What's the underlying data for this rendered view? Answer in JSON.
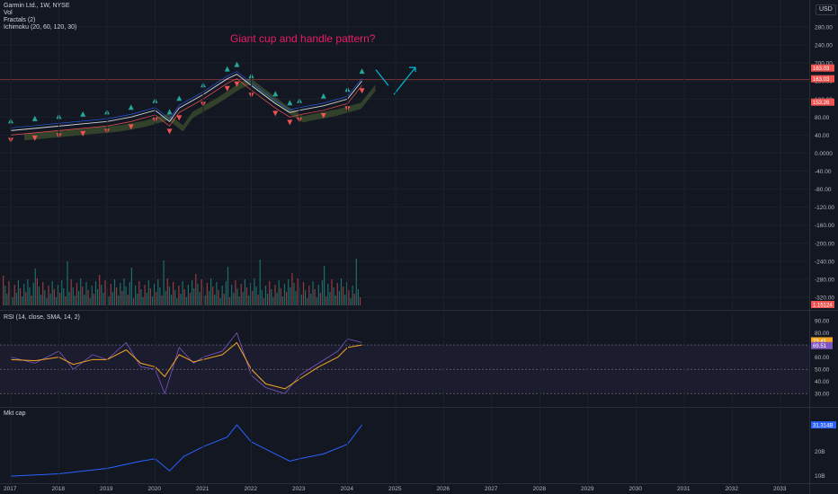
{
  "header": {
    "symbol": "Garmin Ltd., 1W, NYSE",
    "indicators": [
      "Vol",
      "Fractals (2)",
      "Ichimoku (20, 60, 120, 30)"
    ],
    "currency": "USD"
  },
  "annotation": "Giant cup and handle pattern?",
  "rsi_title": "RSI (14, close, SMA, 14, 2)",
  "mktcap_title": "Mkt cap",
  "colors": {
    "background": "#131722",
    "up": "#26a69a",
    "down": "#ef5350",
    "annotation": "#e91e63",
    "rsi": "#7e57c2",
    "rsi_ma": "#f5a623",
    "mktcap": "#2962ff",
    "cloud": "#6b8e3a"
  },
  "chart_data": [
    {
      "type": "line",
      "title": "Garmin Ltd., 1W, NYSE",
      "x_ticks": [
        "2017",
        "2018",
        "2019",
        "2020",
        "2021",
        "2022",
        "2023",
        "2024",
        "2025",
        "2026",
        "2027",
        "2028",
        "2029",
        "2030",
        "2031",
        "2032",
        "2033"
      ],
      "y_ticks": [
        "280.00",
        "240.00",
        "200.00",
        "160.00",
        "120.00",
        "80.00",
        "40.00",
        "0.0000",
        "-40.00",
        "-80.00",
        "-120.00",
        "-160.00",
        "-200.00",
        "-240.00",
        "-280.00",
        "-320.00"
      ],
      "ylim": [
        -340,
        300
      ],
      "series": [
        {
          "x": [
            "2017",
            "2017.5",
            "2018",
            "2018.5",
            "2019",
            "2019.5",
            "2020",
            "2020.3",
            "2020.5",
            "2021",
            "2021.5",
            "2021.7",
            "2022",
            "2022.5",
            "2022.8",
            "2023",
            "2023.5",
            "2024",
            "2024.3"
          ],
          "values": [
            50,
            55,
            60,
            65,
            70,
            80,
            95,
            70,
            100,
            130,
            165,
            175,
            150,
            110,
            90,
            95,
            105,
            120,
            160
          ]
        }
      ],
      "price_labels": [
        "163.03",
        "163.03",
        "153.26"
      ],
      "volume_label": "1.15124"
    },
    {
      "type": "line",
      "title": "RSI (14, close, SMA, 14, 2)",
      "y_ticks": [
        "90.00",
        "80.00",
        "70.00",
        "60.00",
        "50.00",
        "40.00",
        "30.00"
      ],
      "ylim": [
        25,
        90
      ],
      "levels": [
        70,
        50,
        30
      ],
      "series": [
        {
          "name": "RSI",
          "x": [
            "2017",
            "2017.5",
            "2018",
            "2018.3",
            "2018.7",
            "2019",
            "2019.4",
            "2019.7",
            "2020",
            "2020.2",
            "2020.5",
            "2020.8",
            "2021",
            "2021.4",
            "2021.7",
            "2022",
            "2022.3",
            "2022.7",
            "2023",
            "2023.4",
            "2023.8",
            "2024",
            "2024.3"
          ],
          "values": [
            60,
            55,
            65,
            50,
            62,
            58,
            72,
            52,
            50,
            30,
            68,
            55,
            60,
            65,
            80,
            45,
            35,
            30,
            45,
            55,
            65,
            75,
            72
          ]
        },
        {
          "name": "SMA",
          "x": [
            "2017",
            "2017.5",
            "2018",
            "2018.3",
            "2018.7",
            "2019",
            "2019.4",
            "2019.7",
            "2020",
            "2020.2",
            "2020.5",
            "2020.8",
            "2021",
            "2021.4",
            "2021.7",
            "2022",
            "2022.3",
            "2022.7",
            "2023",
            "2023.4",
            "2023.8",
            "2024",
            "2024.3"
          ],
          "values": [
            58,
            57,
            60,
            54,
            58,
            58,
            66,
            55,
            52,
            44,
            62,
            56,
            58,
            62,
            72,
            50,
            38,
            34,
            42,
            52,
            60,
            68,
            70
          ]
        }
      ],
      "labels": [
        "73.41",
        "69.51"
      ]
    },
    {
      "type": "line",
      "title": "Mkt cap",
      "y_ticks": [
        "20B",
        "10B"
      ],
      "series": [
        {
          "x": [
            "2017",
            "2018",
            "2019",
            "2019.7",
            "2020",
            "2020.3",
            "2020.6",
            "2021",
            "2021.5",
            "2021.7",
            "2022",
            "2022.5",
            "2022.8",
            "2023",
            "2023.5",
            "2024",
            "2024.3"
          ],
          "values": [
            9.8,
            10.8,
            13,
            16,
            17,
            12,
            18,
            22,
            26,
            31,
            24,
            19,
            16,
            17,
            19,
            23,
            31
          ]
        }
      ],
      "label": "31.314B"
    }
  ]
}
